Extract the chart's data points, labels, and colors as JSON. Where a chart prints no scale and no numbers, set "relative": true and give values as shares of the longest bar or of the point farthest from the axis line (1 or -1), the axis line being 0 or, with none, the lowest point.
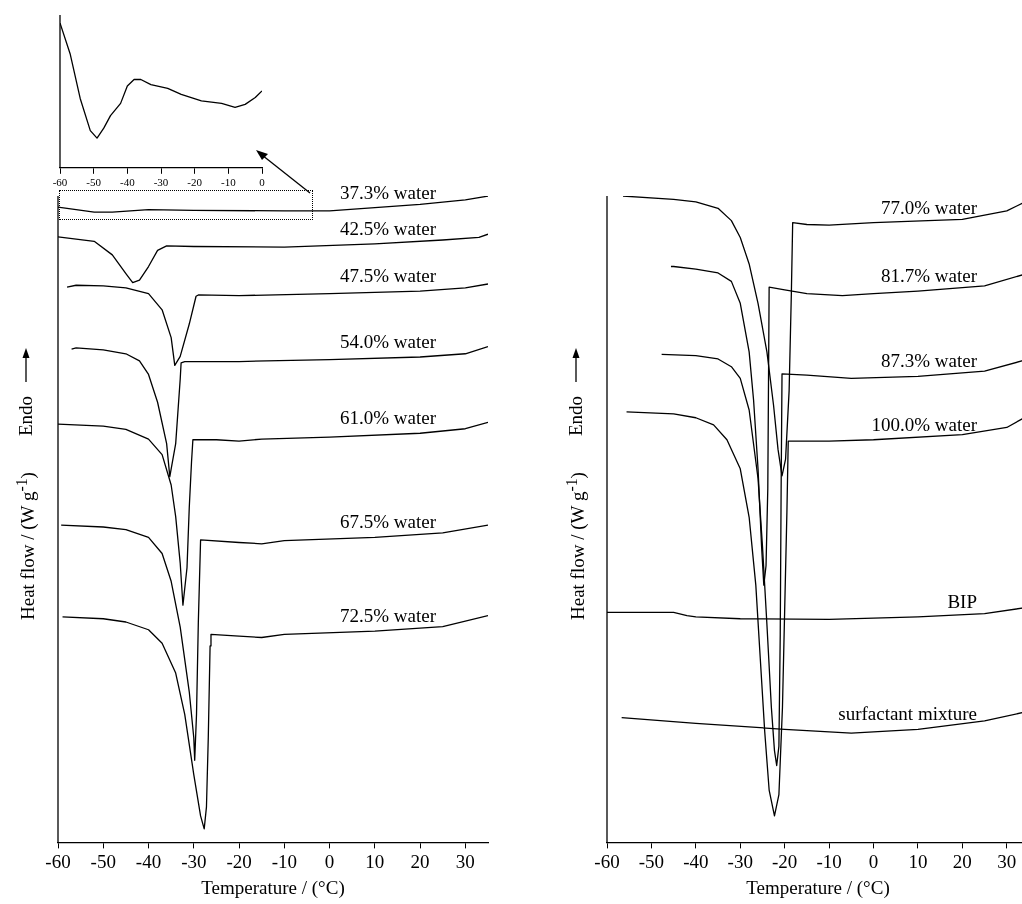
{
  "chart_data": [
    {
      "type": "line",
      "relative": true,
      "xlim": [
        -60,
        0
      ],
      "xticks": [
        -60,
        -50,
        -40,
        -30,
        -20,
        -10,
        0
      ],
      "series": [
        {
          "color": "#000000",
          "x": [
            -60,
            -57,
            -54,
            -51,
            -49,
            -47,
            -45,
            -42,
            -40,
            -38,
            -36,
            -33,
            -28,
            -24,
            -18,
            -12,
            -8,
            -5,
            -2,
            0
          ],
          "values": [
            1.0,
            0.788,
            0.479,
            0.257,
            0.205,
            0.274,
            0.36,
            0.445,
            0.565,
            0.61,
            0.61,
            0.575,
            0.548,
            0.507,
            0.462,
            0.445,
            0.418,
            0.438,
            0.486,
            0.531
          ]
        }
      ]
    },
    {
      "type": "line",
      "relative": true,
      "xlabel": "Temperature / (°C)",
      "ylabel": "Heat flow / (W g$^{-1}$)",
      "annotations": [
        "Endo"
      ],
      "xlim": [
        -60,
        35
      ],
      "xticks": [
        -60,
        -50,
        -40,
        -30,
        -20,
        -10,
        0,
        10,
        20,
        30
      ],
      "series": [
        {
          "name": "37.3% water",
          "color": "#000000",
          "x": [
            -60,
            -52,
            -48,
            -40,
            -30,
            -10,
            0,
            10,
            20,
            30,
            35
          ],
          "values": [
            0.983,
            0.975,
            0.975,
            0.979,
            0.978,
            0.977,
            0.977,
            0.982,
            0.987,
            0.994,
            1.0
          ]
        },
        {
          "name": "42.5% water",
          "color": "#000000",
          "x": [
            -60,
            -52,
            -48,
            -45,
            -43.5,
            -42,
            -40,
            -38,
            -36,
            -30,
            -10,
            10,
            25,
            33,
            35
          ],
          "values": [
            0.937,
            0.93,
            0.909,
            0.88,
            0.866,
            0.87,
            0.891,
            0.916,
            0.923,
            0.922,
            0.921,
            0.926,
            0.932,
            0.936,
            0.941
          ]
        },
        {
          "name": "47.5% water",
          "color": "#000000",
          "x": [
            -58,
            -56,
            -50,
            -45,
            -40,
            -37,
            -35,
            -34.2,
            -33,
            -31,
            -29.5,
            -29,
            -20,
            0,
            20,
            30,
            35
          ],
          "values": [
            0.859,
            0.862,
            0.861,
            0.858,
            0.849,
            0.824,
            0.781,
            0.738,
            0.752,
            0.802,
            0.845,
            0.847,
            0.846,
            0.849,
            0.853,
            0.858,
            0.864
          ]
        },
        {
          "name": "54.0% water",
          "color": "#000000",
          "x": [
            -57,
            -56,
            -50,
            -45,
            -42,
            -40,
            -38,
            -36,
            -35.3,
            -34,
            -33,
            -32.8,
            -32,
            -20,
            0,
            20,
            30,
            35
          ],
          "values": [
            0.763,
            0.765,
            0.762,
            0.756,
            0.745,
            0.724,
            0.681,
            0.617,
            0.566,
            0.617,
            0.717,
            0.742,
            0.744,
            0.744,
            0.747,
            0.751,
            0.756,
            0.767
          ]
        },
        {
          "name": "61.0% water",
          "color": "#000000",
          "x": [
            -60,
            -50,
            -45,
            -40,
            -37,
            -35,
            -34,
            -33,
            -32.4,
            -31.5,
            -31,
            -30.5,
            -30.2,
            -25,
            -20,
            -15,
            0,
            20,
            30,
            35
          ],
          "values": [
            0.647,
            0.644,
            0.639,
            0.624,
            0.6,
            0.553,
            0.504,
            0.432,
            0.367,
            0.425,
            0.518,
            0.589,
            0.623,
            0.623,
            0.621,
            0.624,
            0.627,
            0.633,
            0.64,
            0.65
          ]
        },
        {
          "name": "67.5% water",
          "color": "#000000",
          "x": [
            -59.3,
            -50,
            -45,
            -40,
            -37,
            -35,
            -33,
            -31,
            -30,
            -29.8,
            -29.4,
            -29,
            -28.5,
            -20,
            -15,
            -10,
            10,
            25,
            35
          ],
          "values": [
            0.491,
            0.488,
            0.484,
            0.472,
            0.447,
            0.404,
            0.333,
            0.233,
            0.162,
            0.127,
            0.198,
            0.34,
            0.468,
            0.464,
            0.462,
            0.467,
            0.472,
            0.479,
            0.491
          ]
        },
        {
          "name": "72.5% water",
          "color": "#000000",
          "x": [
            -59,
            -50,
            -45,
            -40,
            -37,
            -34,
            -32,
            -30,
            -28.5,
            -27.7,
            -27.2,
            -26.8,
            -26.4,
            -26.2,
            -20,
            -15,
            -10,
            10,
            25,
            35
          ],
          "values": [
            0.349,
            0.346,
            0.341,
            0.329,
            0.308,
            0.262,
            0.198,
            0.105,
            0.041,
            0.021,
            0.055,
            0.162,
            0.304,
            0.322,
            0.319,
            0.317,
            0.322,
            0.327,
            0.334,
            0.351
          ]
        }
      ]
    },
    {
      "type": "line",
      "relative": true,
      "xlabel": "Temperature / (°C)",
      "ylabel": "Heat flow / (W g$^{-1}$)",
      "annotations": [
        "Endo"
      ],
      "xlim": [
        -60,
        35
      ],
      "xticks": [
        -60,
        -50,
        -40,
        -30,
        -20,
        -10,
        0,
        10,
        20,
        30
      ],
      "series": [
        {
          "name": "77.0% water",
          "color": "#000000",
          "x": [
            -56.4,
            -45,
            -40,
            -35,
            -32,
            -30,
            -28,
            -26,
            -24,
            -22.5,
            -21.5,
            -20.6,
            -19.8,
            -19,
            -18.5,
            -18.2,
            -15,
            -10,
            0,
            20,
            30,
            35
          ],
          "values": [
            1.0,
            0.995,
            0.991,
            0.981,
            0.962,
            0.936,
            0.895,
            0.834,
            0.759,
            0.676,
            0.608,
            0.567,
            0.593,
            0.699,
            0.849,
            0.959,
            0.956,
            0.955,
            0.959,
            0.964,
            0.977,
            0.994
          ]
        },
        {
          "name": "81.7% water",
          "color": "#000000",
          "x": [
            -45.6,
            -45,
            -40,
            -35,
            -32,
            -30,
            -28,
            -27,
            -26,
            -25.2,
            -24.7,
            -24.2,
            -23.8,
            -23.5,
            -20,
            -15,
            -7,
            0,
            10,
            25,
            35
          ],
          "values": [
            0.891,
            0.891,
            0.887,
            0.881,
            0.868,
            0.834,
            0.759,
            0.684,
            0.578,
            0.458,
            0.398,
            0.428,
            0.548,
            0.859,
            0.855,
            0.849,
            0.846,
            0.849,
            0.853,
            0.861,
            0.881
          ]
        },
        {
          "name": "87.3% water",
          "color": "#000000",
          "x": [
            -47.7,
            -40,
            -35,
            -32,
            -30,
            -28,
            -26,
            -25,
            -24,
            -23,
            -22.3,
            -21.8,
            -21.3,
            -21,
            -20.8,
            -20.6,
            -15,
            -5,
            10,
            25,
            35
          ],
          "values": [
            0.755,
            0.753,
            0.748,
            0.736,
            0.718,
            0.669,
            0.563,
            0.458,
            0.337,
            0.209,
            0.142,
            0.119,
            0.149,
            0.322,
            0.548,
            0.725,
            0.723,
            0.718,
            0.721,
            0.729,
            0.748
          ]
        },
        {
          "name": "100.0% water",
          "color": "#000000",
          "x": [
            -55.6,
            -45,
            -40,
            -36,
            -33,
            -30,
            -28,
            -26.5,
            -25.5,
            -24.5,
            -23.5,
            -22.3,
            -21.3,
            -20.5,
            -20,
            -19.5,
            -19.2,
            -10,
            0,
            20,
            30,
            35
          ],
          "values": [
            0.666,
            0.663,
            0.657,
            0.646,
            0.623,
            0.578,
            0.503,
            0.398,
            0.285,
            0.172,
            0.081,
            0.041,
            0.074,
            0.209,
            0.36,
            0.511,
            0.621,
            0.621,
            0.623,
            0.631,
            0.642,
            0.661
          ]
        },
        {
          "name": "BIP",
          "color": "#000000",
          "x": [
            -60,
            -50,
            -45,
            -42,
            -40,
            -30,
            -10,
            10,
            25,
            35
          ],
          "values": [
            0.356,
            0.356,
            0.356,
            0.351,
            0.349,
            0.346,
            0.345,
            0.349,
            0.354,
            0.364
          ]
        },
        {
          "name": "surfactant mixture",
          "color": "#000000",
          "x": [
            -56.7,
            -40,
            -20,
            -5,
            10,
            25,
            35
          ],
          "values": [
            0.193,
            0.184,
            0.175,
            0.169,
            0.175,
            0.188,
            0.203
          ]
        }
      ]
    }
  ]
}
